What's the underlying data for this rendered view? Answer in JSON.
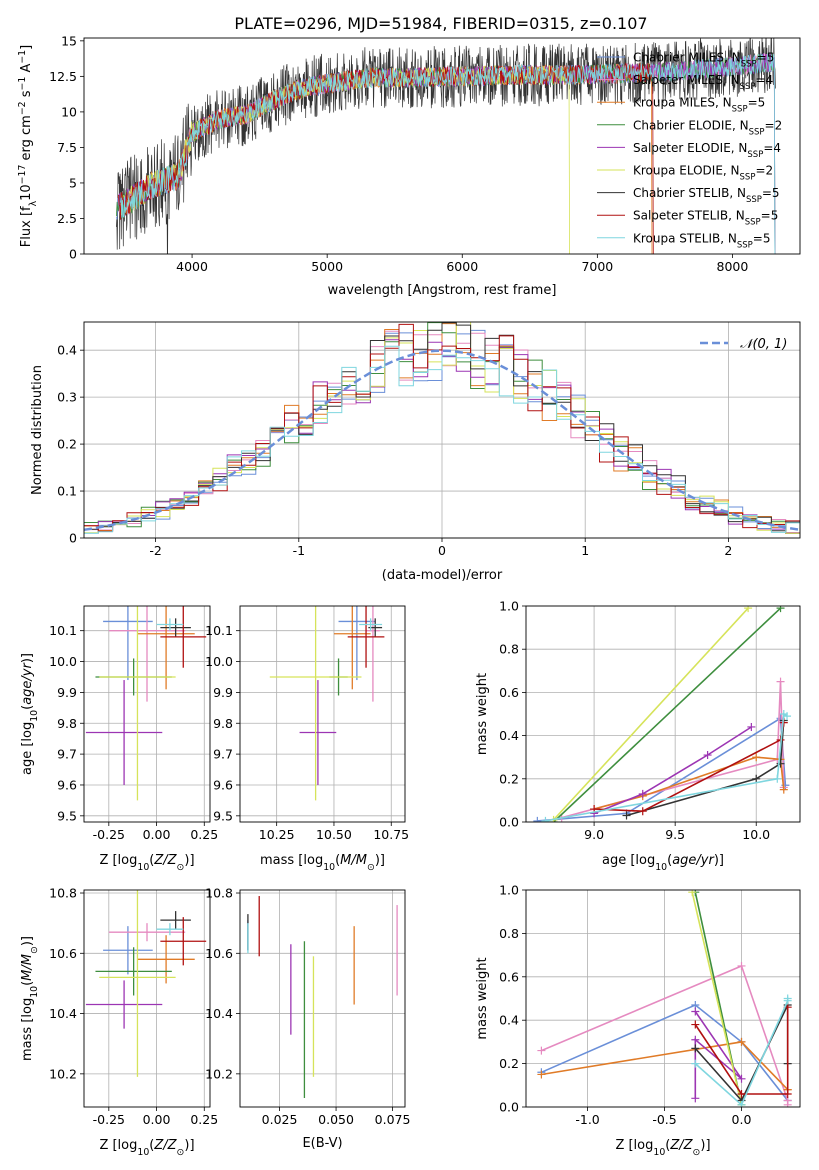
{
  "figure": {
    "title": "PLATE=0296, MJD=51984, FIBERID=0315, z=0.107"
  },
  "series_styles": [
    {
      "name": "Chabrier MILES, N_SSP=5",
      "color": "#6a8fd8"
    },
    {
      "name": "Salpeter MILES, N_SSP=4",
      "color": "#e58ac0"
    },
    {
      "name": "Kroupa MILES, N_SSP=5",
      "color": "#e07b27"
    },
    {
      "name": "Chabrier ELODIE, N_SSP=2",
      "color": "#3e8e3e"
    },
    {
      "name": "Salpeter ELODIE, N_SSP=4",
      "color": "#9c35b3"
    },
    {
      "name": "Kroupa ELODIE, N_SSP=2",
      "color": "#d6e35a"
    },
    {
      "name": "Chabrier STELIB, N_SSP=5",
      "color": "#333333"
    },
    {
      "name": "Salpeter STELIB, N_SSP=5",
      "color": "#b01010"
    },
    {
      "name": "Kroupa STELIB, N_SSP=5",
      "color": "#7fd6df"
    }
  ],
  "chart_data": [
    {
      "id": "spectrum",
      "type": "line",
      "title": "PLATE=0296, MJD=51984, FIBERID=0315, z=0.107",
      "xlabel": "wavelength [Angstrom, rest frame]",
      "ylabel": "Flux [f_λ 10^-17 erg cm^-2 s^-1 A^-1]",
      "xlim": [
        3200,
        8500
      ],
      "ylim": [
        0,
        15.2
      ],
      "xticks": [
        4000,
        5000,
        6000,
        7000,
        8000
      ],
      "yticks": [
        0.0,
        2.5,
        5.0,
        7.5,
        10.0,
        12.5,
        15.0
      ],
      "legend": {
        "placement": "top-right",
        "entries": [
          "Chabrier MILES, N_SSP=5",
          "Salpeter MILES, N_SSP=4",
          "Kroupa MILES, N_SSP=5",
          "Chabrier ELODIE, N_SSP=2",
          "Salpeter ELODIE, N_SSP=4",
          "Kroupa ELODIE, N_SSP=2",
          "Chabrier STELIB, N_SSP=5",
          "Salpeter STELIB, N_SSP=5",
          "Kroupa STELIB, N_SSP=5"
        ]
      },
      "data_trend": {
        "x": [
          3500,
          3700,
          3900,
          4000,
          4200,
          4400,
          4600,
          4800,
          5000,
          5300,
          5600,
          6000,
          6400,
          6800,
          7200,
          7500,
          8000,
          8300
        ],
        "y": [
          3.5,
          4.8,
          5.5,
          8.5,
          9.5,
          9.8,
          10.8,
          11.6,
          12.0,
          12.4,
          12.4,
          12.5,
          12.6,
          12.6,
          12.7,
          12.8,
          13.2,
          13.5
        ]
      }
    },
    {
      "id": "residuals",
      "type": "bar",
      "xlabel": "(data-model)/error",
      "ylabel": "Normed distribution",
      "xlim": [
        -2.5,
        2.5
      ],
      "ylim": [
        0,
        0.46
      ],
      "xticks": [
        -2,
        -1,
        0,
        1,
        2
      ],
      "yticks": [
        0.0,
        0.1,
        0.2,
        0.3,
        0.4
      ],
      "grid": true,
      "legend": {
        "placement": "top-right",
        "entries": [
          "𝒩(0, 1)"
        ]
      },
      "reference_curve": {
        "name": "𝒩(0, 1)",
        "mean": 0,
        "sigma": 1
      }
    },
    {
      "id": "age-vs-Z",
      "type": "scatter",
      "xlabel": "Z [log10(Z/Z⊙)]",
      "ylabel": "age  [log10(age/yr)]",
      "xlim": [
        -0.38,
        0.28
      ],
      "ylim": [
        9.48,
        10.18
      ],
      "xticks": [
        "-0.25",
        "0.00",
        "0.25"
      ],
      "yticks": [
        "9.5",
        "9.6",
        "9.7",
        "9.8",
        "9.9",
        "10.0",
        "10.1"
      ],
      "grid": true,
      "points": [
        {
          "series": 0,
          "x": -0.15,
          "xerr": 0.13,
          "y": 10.13,
          "yerr": 0.19
        },
        {
          "series": 1,
          "x": -0.05,
          "xerr": 0.2,
          "y": 10.1,
          "yerr": 0.23
        },
        {
          "series": 2,
          "x": 0.05,
          "xerr": 0.15,
          "y": 10.09,
          "yerr": 0.18
        },
        {
          "series": 3,
          "x": -0.12,
          "xerr": 0.2,
          "y": 9.95,
          "yerr": 0.06
        },
        {
          "series": 4,
          "x": -0.17,
          "xerr": 0.2,
          "y": 9.77,
          "yerr": 0.17
        },
        {
          "series": 5,
          "x": -0.1,
          "xerr": 0.2,
          "y": 9.95,
          "yerr": 0.4
        },
        {
          "series": 6,
          "x": 0.1,
          "xerr": 0.08,
          "y": 10.11,
          "yerr": 0.03
        },
        {
          "series": 7,
          "x": 0.14,
          "xerr": 0.12,
          "y": 10.08,
          "yerr": 0.1
        },
        {
          "series": 8,
          "x": 0.07,
          "xerr": 0.07,
          "y": 10.12,
          "yerr": 0.02
        }
      ]
    },
    {
      "id": "age-vs-mass",
      "type": "scatter",
      "xlabel": "mass [log10(M/M⊙)]",
      "ylabel": "",
      "xlim": [
        10.09,
        10.81
      ],
      "ylim": [
        9.48,
        10.18
      ],
      "xticks": [
        "10.25",
        "10.50",
        "10.75"
      ],
      "yticks": [
        "9.5",
        "9.6",
        "9.7",
        "9.8",
        "9.9",
        "10.0",
        "10.1"
      ],
      "grid": true,
      "points": [
        {
          "series": 0,
          "x": 10.6,
          "xerr": 0.08,
          "y": 10.13,
          "yerr": 0.19
        },
        {
          "series": 1,
          "x": 10.67,
          "xerr": 0.03,
          "y": 10.1,
          "yerr": 0.23
        },
        {
          "series": 2,
          "x": 10.58,
          "xerr": 0.08,
          "y": 10.09,
          "yerr": 0.18
        },
        {
          "series": 3,
          "x": 10.52,
          "xerr": 0.04,
          "y": 9.95,
          "yerr": 0.06
        },
        {
          "series": 4,
          "x": 10.43,
          "xerr": 0.08,
          "y": 9.77,
          "yerr": 0.17
        },
        {
          "series": 5,
          "x": 10.42,
          "xerr": 0.2,
          "y": 9.95,
          "yerr": 0.4
        },
        {
          "series": 6,
          "x": 10.68,
          "xerr": 0.03,
          "y": 10.11,
          "yerr": 0.03
        },
        {
          "series": 7,
          "x": 10.64,
          "xerr": 0.08,
          "y": 10.08,
          "yerr": 0.1
        },
        {
          "series": 8,
          "x": 10.66,
          "xerr": 0.05,
          "y": 10.12,
          "yerr": 0.02
        }
      ]
    },
    {
      "id": "mass-weight-vs-age",
      "type": "line",
      "xlabel": "age  [log10(age/yr)]",
      "ylabel": "mass weight",
      "xlim": [
        8.58,
        10.27
      ],
      "ylim": [
        0,
        1.0
      ],
      "xticks": [
        "9.0",
        "9.5",
        "10.0"
      ],
      "yticks": [
        "0.0",
        "0.2",
        "0.4",
        "0.6",
        "0.8",
        "1.0"
      ],
      "grid": true,
      "series": [
        {
          "series": 0,
          "x": [
            8.65,
            9.2,
            10.15,
            10.18
          ],
          "y": [
            0.005,
            0.04,
            0.48,
            0.17
          ]
        },
        {
          "series": 1,
          "x": [
            8.8,
            10.13,
            10.15,
            10.17
          ],
          "y": [
            0.02,
            0.29,
            0.65,
            0.16
          ]
        },
        {
          "series": 2,
          "x": [
            9.0,
            9.3,
            10.0,
            10.15,
            10.17
          ],
          "y": [
            0.06,
            0.12,
            0.3,
            0.29,
            0.15
          ]
        },
        {
          "series": 3,
          "x": [
            8.75,
            10.15
          ],
          "y": [
            0.0,
            0.99
          ]
        },
        {
          "series": 4,
          "x": [
            9.0,
            9.3,
            9.7,
            9.97
          ],
          "y": [
            0.04,
            0.13,
            0.31,
            0.44
          ]
        },
        {
          "series": 5,
          "x": [
            8.75,
            9.95
          ],
          "y": [
            0.01,
            0.99
          ]
        },
        {
          "series": 6,
          "x": [
            9.2,
            10.0,
            10.15,
            10.17
          ],
          "y": [
            0.03,
            0.2,
            0.27,
            0.47
          ]
        },
        {
          "series": 7,
          "x": [
            9.0,
            9.3,
            10.15,
            10.17
          ],
          "y": [
            0.06,
            0.05,
            0.38,
            0.46
          ]
        },
        {
          "series": 8,
          "x": [
            8.7,
            10.13,
            10.17,
            10.19
          ],
          "y": [
            0.005,
            0.2,
            0.5,
            0.49
          ]
        }
      ]
    },
    {
      "id": "mass-vs-Z",
      "type": "scatter",
      "xlabel": "Z [log10(Z/Z⊙)]",
      "ylabel": "mass [log10(M/M⊙)]",
      "xlim": [
        -0.38,
        0.28
      ],
      "ylim": [
        10.09,
        10.81
      ],
      "xticks": [
        "-0.25",
        "0.00",
        "0.25"
      ],
      "yticks": [
        "10.2",
        "10.4",
        "10.6",
        "10.8"
      ],
      "grid": true,
      "points": [
        {
          "series": 0,
          "x": -0.15,
          "xerr": 0.13,
          "y": 10.61,
          "yerr": 0.08
        },
        {
          "series": 1,
          "x": -0.05,
          "xerr": 0.2,
          "y": 10.67,
          "yerr": 0.03
        },
        {
          "series": 2,
          "x": 0.05,
          "xerr": 0.15,
          "y": 10.58,
          "yerr": 0.08
        },
        {
          "series": 3,
          "x": -0.12,
          "xerr": 0.2,
          "y": 10.54,
          "yerr": 0.08
        },
        {
          "series": 4,
          "x": -0.17,
          "xerr": 0.2,
          "y": 10.43,
          "yerr": 0.08
        },
        {
          "series": 5,
          "x": -0.1,
          "xerr": 0.2,
          "y": 10.52,
          "yerr": 0.33
        },
        {
          "series": 6,
          "x": 0.1,
          "xerr": 0.08,
          "y": 10.71,
          "yerr": 0.03
        },
        {
          "series": 7,
          "x": 0.14,
          "xerr": 0.12,
          "y": 10.64,
          "yerr": 0.08
        },
        {
          "series": 8,
          "x": 0.07,
          "xerr": 0.07,
          "y": 10.68,
          "yerr": 0.02
        }
      ]
    },
    {
      "id": "mass-vs-ebv",
      "type": "scatter",
      "xlabel": "E(B-V)",
      "ylabel": "",
      "xlim": [
        0.0075,
        0.0805
      ],
      "ylim": [
        10.09,
        10.81
      ],
      "xticks": [
        "0.025",
        "0.050",
        "0.075"
      ],
      "yticks": [
        "10.2",
        "10.4",
        "10.6",
        "10.8"
      ],
      "grid": true,
      "points": [
        {
          "series": 0,
          "x": 0.011,
          "xerr": 0,
          "y": 10.66,
          "yerr": 0.05
        },
        {
          "series": 1,
          "x": 0.077,
          "xerr": 0,
          "y": 10.61,
          "yerr": 0.15
        },
        {
          "series": 2,
          "x": 0.058,
          "xerr": 0,
          "y": 10.56,
          "yerr": 0.13
        },
        {
          "series": 3,
          "x": 0.036,
          "xerr": 0,
          "y": 10.38,
          "yerr": 0.26
        },
        {
          "series": 4,
          "x": 0.03,
          "xerr": 0,
          "y": 10.48,
          "yerr": 0.15
        },
        {
          "series": 5,
          "x": 0.04,
          "xerr": 0,
          "y": 10.39,
          "yerr": 0.2
        },
        {
          "series": 6,
          "x": 0.011,
          "xerr": 0,
          "y": 10.67,
          "yerr": 0.06
        },
        {
          "series": 7,
          "x": 0.016,
          "xerr": 0,
          "y": 10.69,
          "yerr": 0.1
        },
        {
          "series": 8,
          "x": 0.011,
          "xerr": 0,
          "y": 10.65,
          "yerr": 0.05
        }
      ]
    },
    {
      "id": "mass-weight-vs-Z",
      "type": "line",
      "xlabel": "Z [log10(Z/Z⊙)]",
      "ylabel": "mass weight",
      "xlim": [
        -1.4,
        0.38
      ],
      "ylim": [
        0,
        1.0
      ],
      "xticks": [
        "-1.0",
        "-0.5",
        "0.0"
      ],
      "yticks": [
        "0.0",
        "0.2",
        "0.4",
        "0.6",
        "0.8",
        "1.0"
      ],
      "grid": true,
      "series": [
        {
          "series": 0,
          "x": [
            -1.3,
            -0.3,
            0.0,
            0.3
          ],
          "y": [
            0.16,
            0.47,
            0.3,
            0.03
          ]
        },
        {
          "series": 1,
          "x": [
            -1.3,
            0.0,
            0.3,
            0.3
          ],
          "y": [
            0.26,
            0.65,
            0.03,
            0.01
          ]
        },
        {
          "series": 2,
          "x": [
            -1.3,
            0.0,
            0.3,
            0.3
          ],
          "y": [
            0.15,
            0.3,
            0.08,
            0.08
          ]
        },
        {
          "series": 3,
          "x": [
            -0.3,
            0.0
          ],
          "y": [
            0.99,
            0.01
          ]
        },
        {
          "series": 4,
          "x": [
            -0.3,
            0.0,
            -0.3,
            -0.3
          ],
          "y": [
            0.44,
            0.13,
            0.31,
            0.04
          ]
        },
        {
          "series": 5,
          "x": [
            -0.32,
            0.0
          ],
          "y": [
            0.99,
            0.01
          ]
        },
        {
          "series": 6,
          "x": [
            -0.3,
            0.0,
            0.3,
            0.3
          ],
          "y": [
            0.27,
            0.03,
            0.47,
            0.2
          ]
        },
        {
          "series": 7,
          "x": [
            -0.3,
            0.0,
            0.3,
            0.3
          ],
          "y": [
            0.38,
            0.06,
            0.06,
            0.46
          ]
        },
        {
          "series": 8,
          "x": [
            -0.3,
            0.0,
            0.3,
            0.3
          ],
          "y": [
            0.2,
            0.01,
            0.49,
            0.5
          ]
        }
      ]
    }
  ]
}
